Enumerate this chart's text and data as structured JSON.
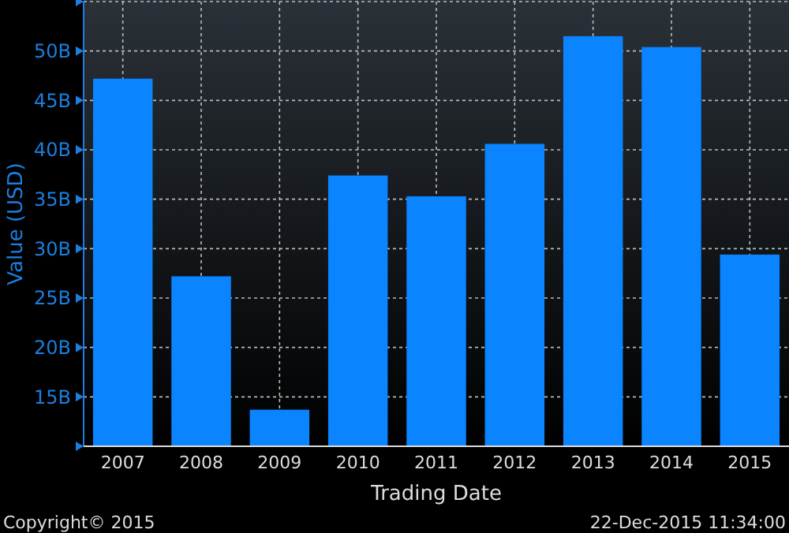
{
  "chart_data": {
    "type": "bar",
    "xlabel": "Trading Date",
    "ylabel": "Value (USD)",
    "categories": [
      "2007",
      "2008",
      "2009",
      "2010",
      "2011",
      "2012",
      "2013",
      "2014",
      "2015"
    ],
    "values": [
      47.2,
      27.2,
      13.7,
      37.4,
      35.3,
      40.6,
      51.5,
      50.4,
      29.4
    ],
    "color": "#0a84ff",
    "ylim": [
      10,
      55
    ],
    "yticks": [
      {
        "value": 10,
        "label": null
      },
      {
        "value": 15,
        "label": "15B"
      },
      {
        "value": 20,
        "label": "20B"
      },
      {
        "value": 25,
        "label": "25B"
      },
      {
        "value": 30,
        "label": "30B"
      },
      {
        "value": 35,
        "label": "35B"
      },
      {
        "value": 40,
        "label": "40B"
      },
      {
        "value": 45,
        "label": "45B"
      },
      {
        "value": 50,
        "label": "50B"
      },
      {
        "value": 55,
        "label": null
      }
    ],
    "grid": true,
    "annotations": [
      "Copyright© 2015",
      "22-Dec-2015 11:34:00"
    ]
  }
}
